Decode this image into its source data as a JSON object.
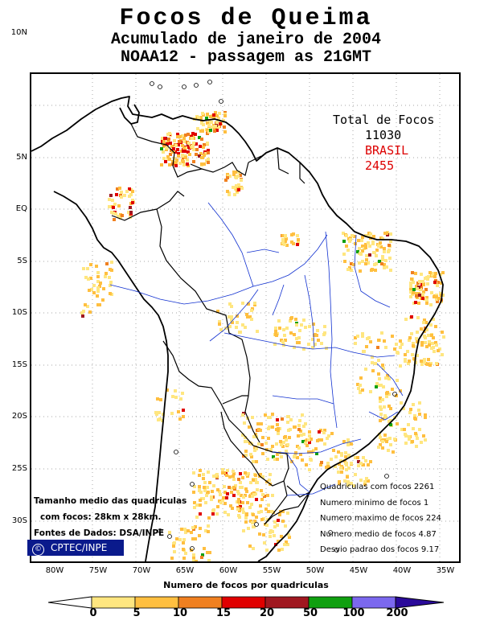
{
  "title": {
    "line1": "Focos de Queima",
    "line2": "Acumulado de janeiro de 2004",
    "line3": "NOAA12 - passagem as 21GMT"
  },
  "totals": {
    "label": "Total de Focos",
    "total": "11030",
    "country": "BRASIL",
    "country_total": "2455"
  },
  "y_axis": [
    "10N",
    "5N",
    "EQ",
    "5S",
    "10S",
    "15S",
    "20S",
    "25S",
    "30S"
  ],
  "x_axis": [
    "80W",
    "75W",
    "70W",
    "65W",
    "60W",
    "55W",
    "50W",
    "45W",
    "40W",
    "35W"
  ],
  "stats": [
    "Quadriculas com focos 2261",
    "Numero minimo de focos 1",
    "Numero maximo de focos 224",
    "Numero medio de focos 4.87",
    "Desvio padrao dos focos 9.17"
  ],
  "notes": {
    "line1": "Tamanho medio das quadriculas",
    "line2": "com focos: 28km x 28km.",
    "line3": "Fontes de Dados: DSA/INPE"
  },
  "badge": {
    "symbol": "©",
    "text": "CPTEC/INPE"
  },
  "legend": {
    "title": "Numero de focos por quadriculas",
    "ticks": [
      "0",
      "5",
      "10",
      "15",
      "20",
      "50",
      "100",
      "200"
    ],
    "colors": [
      "#ffe680",
      "#ffbf40",
      "#f08020",
      "#e00000",
      "#a01820",
      "#10a010",
      "#7b68ee",
      "#2a0a9a"
    ]
  },
  "colors": {
    "land": "#000000",
    "rivers": "#1030d0",
    "badge": "#0a1a8c"
  }
}
